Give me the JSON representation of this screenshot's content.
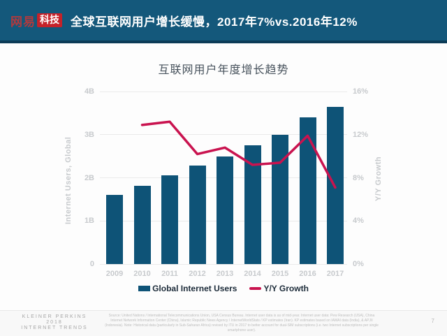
{
  "header": {
    "logo": {
      "brand": "网易",
      "badge": "科技"
    },
    "title": "全球互联网用户增长缓慢，2017年7%vs.2016年12%"
  },
  "chart": {
    "title": "互联网用户年度增长趋势",
    "left_axis": {
      "label": "Internet Users, Global",
      "ticks": [
        "0",
        "1B",
        "2B",
        "3B",
        "4B"
      ]
    },
    "right_axis": {
      "label": "Y/Y Growth",
      "ticks": [
        "0%",
        "4%",
        "8%",
        "12%",
        "16%"
      ]
    },
    "legend": [
      {
        "label": "Global Internet Users",
        "type": "bar"
      },
      {
        "label": "Y/Y Growth",
        "type": "line"
      }
    ]
  },
  "chart_data": {
    "type": "bar",
    "title": "互联网用户年度增长趋势",
    "categories": [
      "2009",
      "2010",
      "2011",
      "2012",
      "2013",
      "2014",
      "2015",
      "2016",
      "2017"
    ],
    "series": [
      {
        "name": "Global Internet Users",
        "type": "bar",
        "axis": "left",
        "values": [
          1.6,
          1.82,
          2.05,
          2.28,
          2.5,
          2.75,
          3.0,
          3.4,
          3.65
        ]
      },
      {
        "name": "Y/Y Growth",
        "type": "line",
        "axis": "right",
        "values": [
          null,
          12.9,
          13.2,
          10.2,
          10.8,
          9.2,
          9.4,
          11.9,
          7.1
        ]
      }
    ],
    "ylabel_left": "Internet Users, Global",
    "ylabel_right": "Y/Y Growth",
    "ylim_left": [
      0,
      4
    ],
    "ylim_right": [
      0,
      16
    ],
    "grid": true,
    "legend_position": "bottom"
  },
  "colors": {
    "header_bg": "#14587B",
    "header_border": "#0C3B57",
    "logo_red": "#C5222A",
    "logo_brand_red": "#B03A3E",
    "bar": "#0E5377",
    "line": "#C9134F",
    "grid": "#EAEAEA",
    "tick_text": "#C7CACD",
    "chart_title": "#47525C",
    "legend_text": "#1C2B39"
  },
  "footer": {
    "brand_lines": [
      "KLEINER PERKINS",
      "2018",
      "INTERNET TRENDS"
    ],
    "source": "Source: United Nations / International Telecommunications Union, USA Census Bureau. Internet user data is as of mid-year. Internet user data: Pew Research (USA), China Internet Network Information Center (China), Islamic Republic News Agency / InternetWorldStats / KP estimates (Iran). KP estimates based on IAMAI data (India), & APJII (Indonesia). Note: Historical data (particularly in Sub-Saharan Africa) revised by ITU in 2017 to better account for dual-SIM subscriptions (i.e. two Internet subscriptions per single smartphone user).",
    "page_number": "7"
  }
}
